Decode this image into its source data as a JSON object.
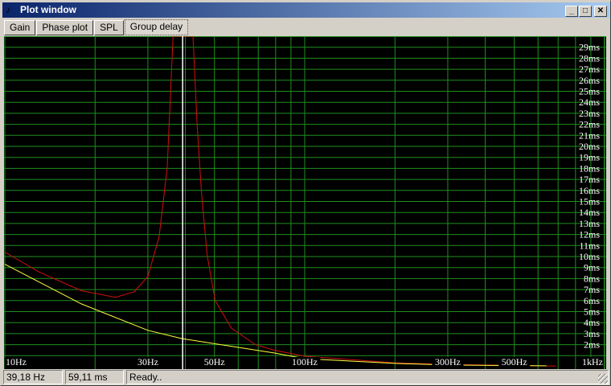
{
  "window": {
    "title": "Plot window",
    "icon": "app-icon",
    "controls": [
      "minimize",
      "maximize",
      "close"
    ]
  },
  "tabs": [
    {
      "label": "Gain"
    },
    {
      "label": "Phase plot"
    },
    {
      "label": "SPL"
    },
    {
      "label": "Group delay",
      "active": true
    }
  ],
  "status": {
    "frequency": "39,18 Hz",
    "delay": "59,11 ms",
    "message": "Ready.."
  },
  "chart_data": {
    "type": "line",
    "xscale": "log",
    "xlim": [
      10,
      1000
    ],
    "ylim": [
      0,
      30
    ],
    "xunit": "Hz",
    "yunit": "ms",
    "grid": true,
    "xticks": [
      "10Hz",
      "30Hz",
      "50Hz",
      "100Hz",
      "300Hz",
      "500Hz",
      "1kHz"
    ],
    "xtick_values": [
      10,
      30,
      50,
      100,
      300,
      500,
      1000
    ],
    "yticks": [
      "2ms",
      "3ms",
      "4ms",
      "5ms",
      "6ms",
      "7ms",
      "8ms",
      "9ms",
      "10ms",
      "11ms",
      "12ms",
      "13ms",
      "14ms",
      "15ms",
      "16ms",
      "17ms",
      "18ms",
      "19ms",
      "20ms",
      "21ms",
      "22ms",
      "23ms",
      "24ms",
      "25ms",
      "26ms",
      "27ms",
      "28ms",
      "29ms"
    ],
    "cursor_hz": 39.18,
    "colors": {
      "background": "#000000",
      "grid": "#1f8f1f",
      "cursor": "#ffffff"
    },
    "series": [
      {
        "color": "#d01010",
        "x": [
          10,
          13,
          18,
          23.4,
          27,
          30,
          32.7,
          34.8,
          36.1,
          36.4,
          42.4,
          43.8,
          45.3,
          47.3,
          50.3,
          57,
          68.5,
          79,
          100,
          200,
          300,
          500,
          690
        ],
        "y": [
          10.4,
          8.6,
          6.9,
          6.3,
          6.8,
          8.2,
          11.8,
          18.1,
          27.9,
          30,
          30,
          21.8,
          15.7,
          10.1,
          6.0,
          3.5,
          2.0,
          1.5,
          0.95,
          0.35,
          0.2,
          0.12,
          0.05
        ]
      },
      {
        "color": "#ffff40",
        "x": [
          10,
          18,
          30,
          39,
          79,
          100,
          200,
          300,
          500,
          640
        ],
        "y": [
          9.3,
          5.7,
          3.3,
          2.55,
          1.25,
          0.73,
          0.3,
          0.15,
          0.1,
          0.08
        ]
      }
    ]
  }
}
